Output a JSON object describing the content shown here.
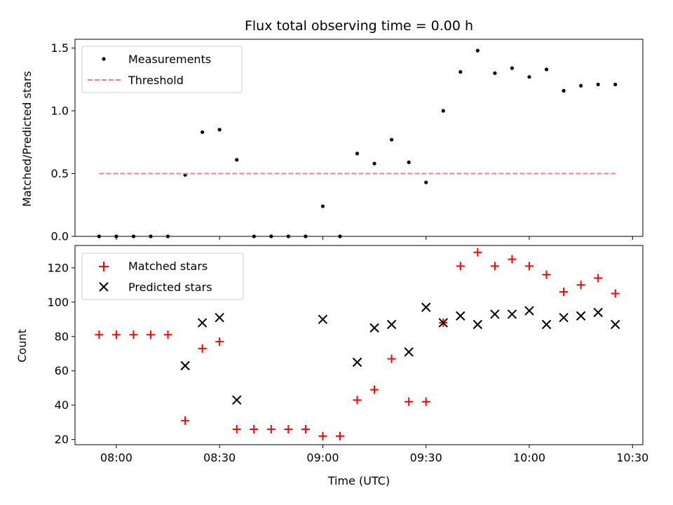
{
  "chart_data": [
    {
      "type": "scatter",
      "title": "Flux total observing time = 0.00 h",
      "xlabel": "",
      "ylabel": "Matched/Predicted stars",
      "ylim": [
        0,
        1.57
      ],
      "yticks": [
        0.0,
        0.5,
        1.0,
        1.5
      ],
      "ytick_labels": [
        "0.0",
        "0.5",
        "1.0",
        "1.5"
      ],
      "xtick_labels": [],
      "legend_position": "upper-left",
      "series": [
        {
          "name": "Measurements",
          "marker": "dot",
          "color": "#000000",
          "x": [
            "07:55",
            "08:00",
            "08:05",
            "08:10",
            "08:15",
            "08:20",
            "08:25",
            "08:30",
            "08:35",
            "08:40",
            "08:45",
            "08:50",
            "08:55",
            "09:00",
            "09:05",
            "09:10",
            "09:15",
            "09:20",
            "09:25",
            "09:30",
            "09:35",
            "09:40",
            "09:45",
            "09:50",
            "09:55",
            "10:00",
            "10:05",
            "10:10",
            "10:15",
            "10:20",
            "10:25"
          ],
          "values": [
            0.0,
            0.0,
            0.0,
            0.0,
            0.0,
            0.49,
            0.83,
            0.85,
            0.61,
            0.0,
            0.0,
            0.0,
            0.0,
            0.24,
            0.0,
            0.66,
            0.58,
            0.77,
            0.59,
            0.43,
            1.0,
            1.31,
            1.48,
            1.3,
            1.34,
            1.27,
            1.33,
            1.16,
            1.2,
            1.21,
            1.21
          ]
        },
        {
          "name": "Threshold",
          "marker": "dashed-line",
          "color": "#f08080",
          "x": [
            "07:55",
            "10:25"
          ],
          "values": [
            0.5,
            0.5
          ]
        }
      ]
    },
    {
      "type": "scatter",
      "title": "",
      "xlabel": "Time (UTC)",
      "ylabel": "Count",
      "ylim": [
        17,
        133
      ],
      "yticks": [
        20,
        40,
        60,
        80,
        100,
        120
      ],
      "ytick_labels": [
        "20",
        "40",
        "60",
        "80",
        "100",
        "120"
      ],
      "xtick_labels": [
        "08:00",
        "08:30",
        "09:00",
        "09:30",
        "10:00",
        "10:30"
      ],
      "legend_position": "upper-left",
      "series": [
        {
          "name": "Matched stars",
          "marker": "plus",
          "color": "#ff0000",
          "x": [
            "07:55",
            "08:00",
            "08:05",
            "08:10",
            "08:15",
            "08:20",
            "08:25",
            "08:30",
            "08:35",
            "08:40",
            "08:45",
            "08:50",
            "08:55",
            "09:00",
            "09:05",
            "09:10",
            "09:15",
            "09:20",
            "09:25",
            "09:30",
            "09:35",
            "09:40",
            "09:45",
            "09:50",
            "09:55",
            "10:00",
            "10:05",
            "10:10",
            "10:15",
            "10:20",
            "10:25"
          ],
          "values": [
            81,
            81,
            81,
            81,
            81,
            31,
            73,
            77,
            26,
            26,
            26,
            26,
            26,
            22,
            22,
            43,
            49,
            67,
            42,
            42,
            88,
            121,
            129,
            121,
            125,
            121,
            116,
            106,
            110,
            114,
            105
          ]
        },
        {
          "name": "Predicted stars",
          "marker": "x",
          "color": "#000000",
          "x": [
            "08:20",
            "08:25",
            "08:30",
            "08:35",
            "09:00",
            "09:10",
            "09:15",
            "09:20",
            "09:25",
            "09:30",
            "09:35",
            "09:40",
            "09:45",
            "09:50",
            "09:55",
            "10:00",
            "10:05",
            "10:10",
            "10:15",
            "10:20",
            "10:25"
          ],
          "values": [
            63,
            88,
            91,
            43,
            90,
            65,
            85,
            87,
            71,
            97,
            88,
            92,
            87,
            93,
            93,
            95,
            87,
            91,
            92,
            94,
            87
          ]
        }
      ]
    }
  ]
}
